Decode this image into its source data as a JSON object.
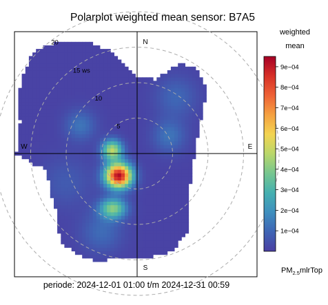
{
  "chart_data": {
    "type": "heatmap",
    "subtype": "polar",
    "title": "Polarplot weighted mean sensor: B7A5",
    "subtitle": "periode: 2024-12-01 01:00 t/m 2024-12-31 00:59",
    "legend_title_line1": "weighted",
    "legend_title_line2": "mean",
    "legend_placement": "right",
    "colorbar_ticks": [
      "1e−04",
      "2e−04",
      "3e−04",
      "4e−04",
      "5e−04",
      "6e−04",
      "7e−04",
      "8e−04",
      "9e−04"
    ],
    "colorbar_tick_values": [
      0.0001,
      0.0002,
      0.0003,
      0.0004,
      0.0005,
      0.0006,
      0.0007,
      0.0008,
      0.0009
    ],
    "colorbar_range": [
      0,
      0.00095
    ],
    "colorbar_colors": [
      "#4a3fa3",
      "#3f65b5",
      "#3f8fbe",
      "#45b0b0",
      "#76c68f",
      "#b9d76b",
      "#f3d451",
      "#f5a141",
      "#ee6236",
      "#d73027",
      "#a50026"
    ],
    "pollutant_label": {
      "base": "PM",
      "sub": "2.5",
      "suffix": "mlrTop"
    },
    "directions": {
      "north": "N",
      "east": "E",
      "south": "S",
      "west": "W"
    },
    "radial_labels": [
      "5",
      "10",
      "15 ws",
      "20"
    ],
    "radial_values": [
      5,
      10,
      15,
      20
    ],
    "radial_unit": "ws",
    "max_radius": 22,
    "grid": "dashed circles",
    "field_floor_value": 1e-05,
    "field_hotspots": [
      {
        "x": -2.6,
        "y": -3.1,
        "value": 0.00092,
        "sx": 1.3,
        "sy": 1.2
      },
      {
        "x": -3.5,
        "y": 0.5,
        "value": 0.00047,
        "sx": 1.0,
        "sy": 1.0
      },
      {
        "x": -3.4,
        "y": -7.7,
        "value": 0.00039,
        "sx": 1.3,
        "sy": 1.0
      },
      {
        "x": -8.0,
        "y": 4.0,
        "value": 0.00012,
        "sx": 1.5,
        "sy": 1.5
      },
      {
        "x": -5.0,
        "y": -11.0,
        "value": 0.0001,
        "sx": 2.0,
        "sy": 2.0
      },
      {
        "x": 4.5,
        "y": 2.5,
        "value": 0.00012,
        "sx": 1.6,
        "sy": 1.6
      },
      {
        "x": 5.5,
        "y": 8.0,
        "value": 9e-05,
        "sx": 2.0,
        "sy": 2.0
      },
      {
        "x": -10.0,
        "y": -4.0,
        "value": 6e-05,
        "sx": 2.5,
        "sy": 2.5
      }
    ],
    "field_boundary": [
      {
        "angle": 0,
        "radius": 10.5
      },
      {
        "angle": 15,
        "radius": 10.8
      },
      {
        "angle": 25,
        "radius": 14.0
      },
      {
        "angle": 35,
        "radius": 14.5
      },
      {
        "angle": 45,
        "radius": 13.5
      },
      {
        "angle": 55,
        "radius": 11.5
      },
      {
        "angle": 65,
        "radius": 9.5
      },
      {
        "angle": 80,
        "radius": 8.5
      },
      {
        "angle": 95,
        "radius": 8.0
      },
      {
        "angle": 110,
        "radius": 8.0
      },
      {
        "angle": 125,
        "radius": 9.0
      },
      {
        "angle": 135,
        "radius": 10.5
      },
      {
        "angle": 145,
        "radius": 12.8
      },
      {
        "angle": 160,
        "radius": 14.5
      },
      {
        "angle": 175,
        "radius": 14.8
      },
      {
        "angle": 190,
        "radius": 15.0
      },
      {
        "angle": 205,
        "radius": 16.5
      },
      {
        "angle": 220,
        "radius": 16.5
      },
      {
        "angle": 235,
        "radius": 14.0
      },
      {
        "angle": 250,
        "radius": 13.0
      },
      {
        "angle": 260,
        "radius": 13.0
      },
      {
        "angle": 270,
        "radius": 17.0
      },
      {
        "angle": 285,
        "radius": 17.0
      },
      {
        "angle": 300,
        "radius": 19.0
      },
      {
        "angle": 315,
        "radius": 20.5
      },
      {
        "angle": 330,
        "radius": 18.5
      },
      {
        "angle": 345,
        "radius": 15.0
      },
      {
        "angle": 360,
        "radius": 10.5
      }
    ]
  }
}
